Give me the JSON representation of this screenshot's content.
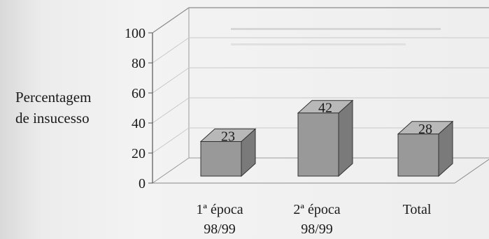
{
  "chart_data": {
    "type": "bar",
    "categories": [
      [
        "1ª época",
        "98/99"
      ],
      [
        "2ª época",
        "98/99"
      ],
      [
        "Total",
        ""
      ]
    ],
    "values": [
      23,
      42,
      28
    ],
    "ylabel_lines": [
      "Percentagem",
      "de insucesso"
    ],
    "ylim": [
      0,
      100
    ],
    "yticks": [
      0,
      20,
      40,
      60,
      80,
      100
    ],
    "grid": true,
    "bar_color": "#999999",
    "bar_top_color": "#b8b8b8",
    "bar_side_color": "#7a7a7a"
  }
}
